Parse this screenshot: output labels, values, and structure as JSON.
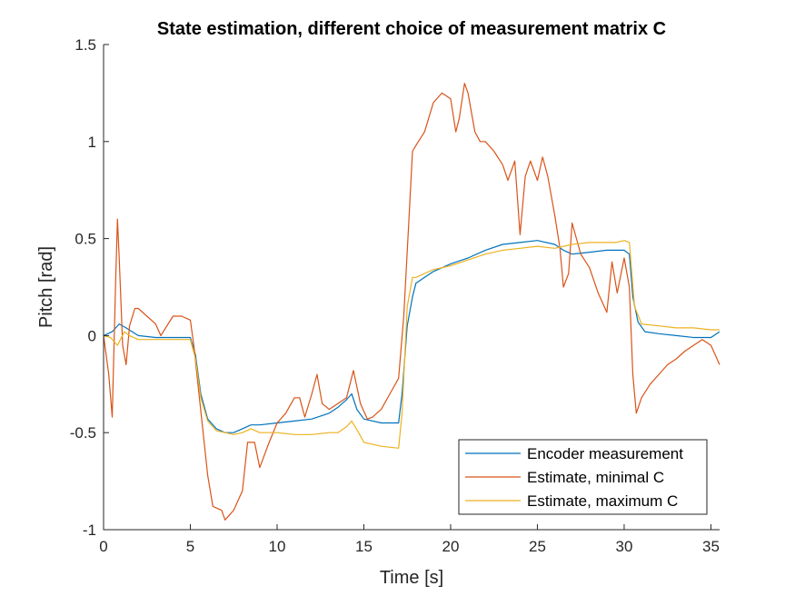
{
  "chart_data": {
    "type": "line",
    "title": "State estimation, different choice of measurement matrix C",
    "xlabel": "Time [s]",
    "ylabel": "Pitch [rad]",
    "xlim": [
      0,
      35.5
    ],
    "ylim": [
      -1,
      1.5
    ],
    "xticks": [
      0,
      5,
      10,
      15,
      20,
      25,
      30,
      35
    ],
    "xtick_labels": [
      "0",
      "5",
      "10",
      "15",
      "20",
      "25",
      "30",
      "35"
    ],
    "yticks": [
      -1,
      -0.5,
      0,
      0.5,
      1,
      1.5
    ],
    "ytick_labels": [
      "-1",
      "-0.5",
      "0",
      "0.5",
      "1",
      "1.5"
    ],
    "grid": false,
    "legend_position": "bottom-right",
    "series": [
      {
        "name": "Encoder measurement",
        "color": "#0072BD",
        "x": [
          0,
          0.5,
          0.9,
          1.3,
          2,
          3,
          4,
          5,
          5.3,
          5.6,
          6,
          6.5,
          7,
          7.5,
          8,
          8.5,
          9,
          10,
          11,
          12,
          13,
          13.5,
          14,
          14.3,
          14.6,
          15,
          16,
          17,
          17.2,
          17.5,
          17.8,
          18,
          18.5,
          19,
          20,
          21,
          22,
          23,
          24,
          25,
          26,
          26.5,
          27,
          28,
          29,
          30,
          30.3,
          30.5,
          30.8,
          31.2,
          32,
          33,
          34,
          35,
          35.5
        ],
        "values": [
          0,
          0.02,
          0.06,
          0.04,
          0,
          -0.01,
          -0.01,
          -0.01,
          -0.1,
          -0.3,
          -0.43,
          -0.48,
          -0.5,
          -0.5,
          -0.48,
          -0.46,
          -0.46,
          -0.45,
          -0.44,
          -0.43,
          -0.4,
          -0.37,
          -0.33,
          -0.3,
          -0.38,
          -0.43,
          -0.45,
          -0.45,
          -0.3,
          0.05,
          0.2,
          0.27,
          0.3,
          0.33,
          0.37,
          0.4,
          0.44,
          0.47,
          0.48,
          0.49,
          0.47,
          0.44,
          0.42,
          0.43,
          0.44,
          0.44,
          0.42,
          0.2,
          0.07,
          0.02,
          0.01,
          0,
          -0.01,
          -0.01,
          0.02
        ]
      },
      {
        "name": "Estimate, minimal C",
        "color": "#D95319",
        "x": [
          0,
          0.3,
          0.5,
          0.7,
          0.8,
          0.9,
          1.1,
          1.3,
          1.5,
          1.8,
          2,
          2.5,
          3,
          3.3,
          4,
          4.5,
          5,
          5.2,
          5.5,
          6,
          6.3,
          6.8,
          7,
          7.5,
          8,
          8.3,
          8.7,
          9,
          9.5,
          10,
          10.5,
          11,
          11.3,
          11.6,
          12,
          12.3,
          12.6,
          13,
          13.5,
          14,
          14.4,
          14.8,
          15.2,
          15.5,
          16,
          16.5,
          17,
          17.3,
          17.6,
          17.8,
          18,
          18.5,
          19,
          19.5,
          20,
          20.3,
          20.5,
          20.8,
          21,
          21.4,
          21.7,
          22,
          22.5,
          23,
          23.3,
          23.7,
          24,
          24.3,
          24.6,
          25,
          25.3,
          25.6,
          26,
          26.3,
          26.5,
          26.8,
          27,
          27.5,
          28,
          28.5,
          29,
          29.3,
          29.6,
          30,
          30.3,
          30.5,
          30.7,
          31,
          31.5,
          32,
          32.5,
          33,
          33.5,
          34,
          34.5,
          35,
          35.5
        ],
        "values": [
          0,
          -0.2,
          -0.42,
          0.3,
          0.6,
          0.4,
          -0.05,
          -0.15,
          0.05,
          0.14,
          0.14,
          0.1,
          0.06,
          0,
          0.1,
          0.1,
          0.08,
          -0.05,
          -0.3,
          -0.72,
          -0.88,
          -0.9,
          -0.95,
          -0.9,
          -0.8,
          -0.55,
          -0.55,
          -0.68,
          -0.56,
          -0.45,
          -0.4,
          -0.32,
          -0.32,
          -0.42,
          -0.3,
          -0.2,
          -0.35,
          -0.38,
          -0.35,
          -0.32,
          -0.18,
          -0.35,
          -0.43,
          -0.42,
          -0.38,
          -0.3,
          -0.22,
          0.1,
          0.6,
          0.95,
          0.98,
          1.05,
          1.2,
          1.25,
          1.22,
          1.05,
          1.12,
          1.3,
          1.25,
          1.05,
          1.0,
          1.0,
          0.95,
          0.88,
          0.8,
          0.9,
          0.52,
          0.82,
          0.9,
          0.8,
          0.92,
          0.82,
          0.62,
          0.45,
          0.25,
          0.32,
          0.58,
          0.42,
          0.35,
          0.22,
          0.12,
          0.38,
          0.22,
          0.4,
          0.25,
          -0.2,
          -0.4,
          -0.32,
          -0.25,
          -0.2,
          -0.15,
          -0.12,
          -0.08,
          -0.05,
          -0.02,
          -0.05,
          -0.15
        ]
      },
      {
        "name": "Estimate, maximum C",
        "color": "#EDB120",
        "x": [
          0,
          0.4,
          0.8,
          1.2,
          1.5,
          2,
          3,
          4,
          5,
          5.3,
          5.6,
          6,
          6.5,
          7,
          7.5,
          8,
          8.5,
          9,
          10,
          11,
          12,
          13,
          13.5,
          14,
          14.3,
          14.7,
          15,
          16,
          17,
          17.2,
          17.5,
          17.8,
          18,
          18.5,
          19,
          20,
          21,
          22,
          23,
          24,
          25,
          26,
          27,
          28,
          29,
          29.5,
          30,
          30.3,
          30.6,
          31,
          32,
          33,
          34,
          35,
          35.5
        ],
        "values": [
          0,
          -0.01,
          -0.05,
          0.02,
          0,
          -0.02,
          -0.02,
          -0.02,
          -0.02,
          -0.12,
          -0.32,
          -0.44,
          -0.49,
          -0.5,
          -0.51,
          -0.5,
          -0.48,
          -0.5,
          -0.5,
          -0.51,
          -0.51,
          -0.5,
          -0.5,
          -0.47,
          -0.44,
          -0.5,
          -0.55,
          -0.57,
          -0.58,
          -0.4,
          0.15,
          0.3,
          0.3,
          0.32,
          0.34,
          0.36,
          0.39,
          0.42,
          0.44,
          0.45,
          0.46,
          0.45,
          0.47,
          0.48,
          0.48,
          0.48,
          0.49,
          0.48,
          0.15,
          0.06,
          0.05,
          0.04,
          0.04,
          0.03,
          0.03
        ]
      }
    ]
  }
}
